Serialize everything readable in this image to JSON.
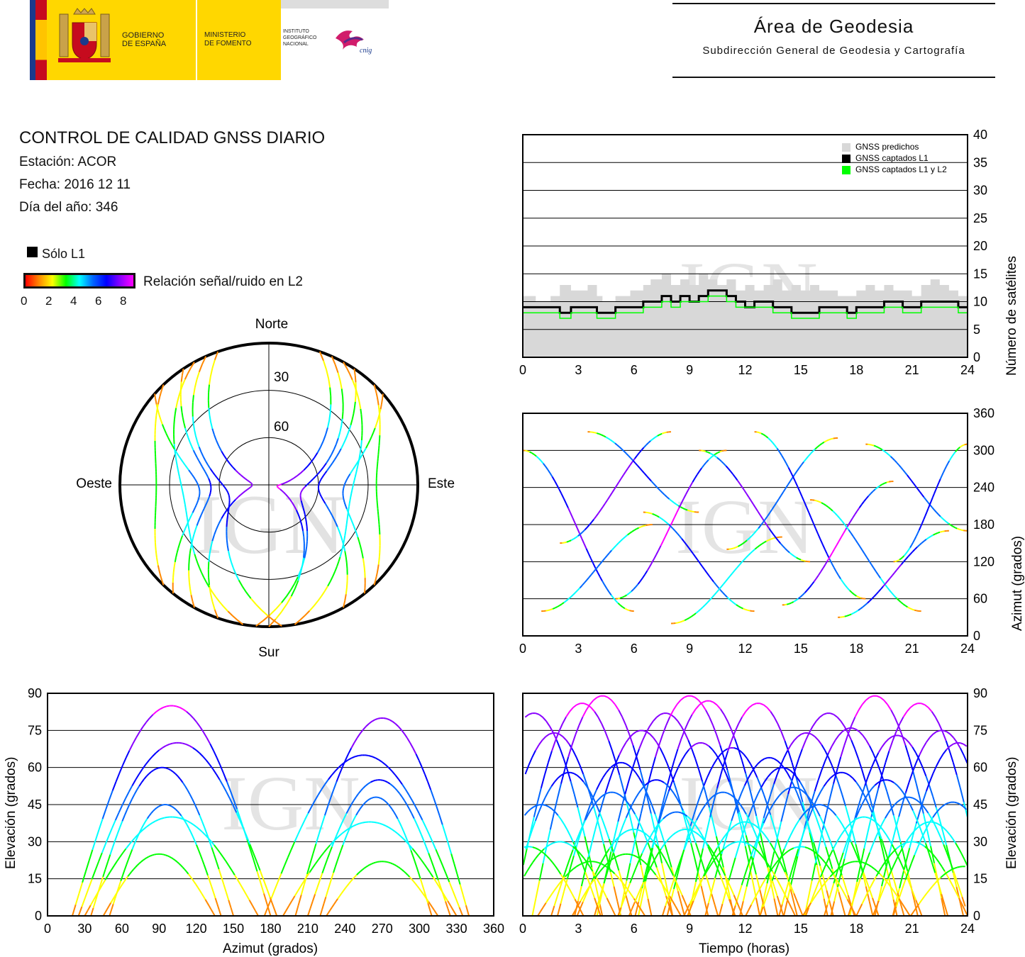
{
  "header": {
    "gov1": "GOBIERNO",
    "gov2": "DE ESPAÑA",
    "min1": "MINISTERIO",
    "min2": "DE FOMENTO",
    "ign1": "INSTITUTO",
    "ign2": "GEOGRÁFICO",
    "ign3": "NACIONAL",
    "cnig": "cnig",
    "area_title": "Área de Geodesia",
    "area_subtitle": "Subdirección General de Geodesia y Cartografía"
  },
  "report": {
    "title": "CONTROL DE CALIDAD GNSS DIARIO",
    "station": "Estación: ACOR",
    "date": "Fecha: 2016 12 11",
    "doy": "Día del año: 346"
  },
  "legend": {
    "l1_only": "Sólo L1",
    "snr_label": "Relación señal/ruido en L2",
    "snr_ticks": [
      "0",
      "2",
      "4",
      "6",
      "8"
    ],
    "snr_colors": [
      "#ff0000",
      "#ff8800",
      "#ffff00",
      "#00ff00",
      "#00ffff",
      "#0066ff",
      "#0000ff",
      "#8800ff",
      "#ff00ff"
    ]
  },
  "watermark": "IGN",
  "chart_data": [
    {
      "id": "satellites",
      "type": "area",
      "x_range": [
        0,
        24
      ],
      "x_ticks": [
        "0",
        "3",
        "6",
        "9",
        "12",
        "15",
        "18",
        "21",
        "24"
      ],
      "y_range": [
        0,
        40
      ],
      "y_ticks": [
        "0",
        "5",
        "10",
        "15",
        "20",
        "25",
        "30",
        "35",
        "40"
      ],
      "ylabel": "Número de satélites",
      "grid": true,
      "legend_position": "top-right",
      "series": [
        {
          "name": "GNSS predichos",
          "color": "#d8d8d8",
          "x": [
            0,
            0.7,
            1.5,
            2,
            2.6,
            3,
            3.5,
            4,
            4.3,
            5,
            5.8,
            6.5,
            6.9,
            7.5,
            8,
            8.5,
            9,
            9.5,
            10,
            10.5,
            11,
            11.5,
            12,
            12.5,
            13,
            13.5,
            14,
            14.5,
            15,
            15.5,
            16,
            16.5,
            17,
            17.5,
            18,
            18.5,
            19,
            19.5,
            20,
            20.5,
            21,
            21.5,
            22,
            22.5,
            23,
            23.5,
            24
          ],
          "values": [
            11,
            10,
            11,
            13,
            12,
            12,
            13,
            11,
            10,
            11,
            12,
            13,
            14,
            15,
            13,
            14,
            13,
            15,
            14,
            13,
            14,
            12,
            13,
            12,
            13,
            14,
            12,
            13,
            12,
            13,
            12,
            12,
            11,
            11,
            12,
            13,
            12,
            13,
            12,
            12,
            11,
            13,
            14,
            13,
            12,
            11,
            11
          ]
        },
        {
          "name": "GNSS captados L1",
          "color": "#000000",
          "x": [
            0,
            0.7,
            1.5,
            2,
            2.6,
            3,
            3.5,
            4,
            4.3,
            5,
            5.8,
            6.5,
            6.9,
            7.5,
            8,
            8.5,
            9,
            9.5,
            10,
            10.5,
            11,
            11.5,
            12,
            12.5,
            13,
            13.5,
            14,
            14.5,
            15,
            15.5,
            16,
            16.5,
            17,
            17.5,
            18,
            18.5,
            19,
            19.5,
            20,
            20.5,
            21,
            21.5,
            22,
            22.5,
            23,
            23.5,
            24
          ],
          "values": [
            9,
            9,
            9,
            8,
            9,
            9,
            9,
            8,
            8,
            9,
            9,
            10,
            10,
            11,
            10,
            11,
            10,
            11,
            12,
            12,
            11,
            10,
            9,
            10,
            10,
            9,
            9,
            8,
            8,
            8,
            9,
            9,
            9,
            8,
            9,
            9,
            9,
            10,
            10,
            9,
            9,
            10,
            10,
            10,
            10,
            9,
            9
          ]
        },
        {
          "name": "GNSS captados L1 y L2",
          "color": "#00ff00",
          "x": [
            0,
            0.7,
            1.5,
            2,
            2.6,
            3,
            3.5,
            4,
            4.3,
            5,
            5.8,
            6.5,
            6.9,
            7.5,
            8,
            8.5,
            9,
            9.5,
            10,
            10.5,
            11,
            11.5,
            12,
            12.5,
            13,
            13.5,
            14,
            14.5,
            15,
            15.5,
            16,
            16.5,
            17,
            17.5,
            18,
            18.5,
            19,
            19.5,
            20,
            20.5,
            21,
            21.5,
            22,
            22.5,
            23,
            23.5,
            24
          ],
          "values": [
            8,
            8,
            8,
            7,
            8,
            8,
            8,
            7,
            7,
            8,
            8,
            9,
            9,
            10,
            9,
            10,
            10,
            10,
            11,
            11,
            10,
            9,
            9,
            9,
            9,
            8,
            8,
            7,
            7,
            7,
            8,
            8,
            8,
            7,
            8,
            8,
            8,
            9,
            9,
            8,
            8,
            9,
            9,
            9,
            9,
            8,
            8
          ]
        }
      ]
    },
    {
      "id": "skyplot",
      "type": "scatter",
      "projection": "polar",
      "directions": {
        "north": "Norte",
        "south": "Sur",
        "east": "Este",
        "west": "Oeste"
      },
      "ring_labels": [
        "30",
        "60"
      ],
      "elevation_rings": [
        30,
        60
      ],
      "satellite_passes": [
        {
          "az_start": 20,
          "az_end": 180,
          "max_el": 85,
          "max_az": 100
        },
        {
          "az_start": 340,
          "az_end": 200,
          "max_el": 80,
          "max_az": 270
        },
        {
          "az_start": 35,
          "az_end": 150,
          "max_el": 60,
          "max_az": 90
        },
        {
          "az_start": 325,
          "az_end": 210,
          "max_el": 55,
          "max_az": 270
        },
        {
          "az_start": 30,
          "az_end": 170,
          "max_el": 40,
          "max_az": 100
        },
        {
          "az_start": 330,
          "az_end": 190,
          "max_el": 38,
          "max_az": 260
        },
        {
          "az_start": 45,
          "az_end": 135,
          "max_el": 25,
          "max_az": 90
        },
        {
          "az_start": 315,
          "az_end": 225,
          "max_el": 22,
          "max_az": 270
        },
        {
          "az_start": 25,
          "az_end": 185,
          "max_el": 70,
          "max_az": 105
        },
        {
          "az_start": 335,
          "az_end": 175,
          "max_el": 65,
          "max_az": 255
        },
        {
          "az_start": 50,
          "az_end": 140,
          "max_el": 45,
          "max_az": 95
        },
        {
          "az_start": 310,
          "az_end": 220,
          "max_el": 48,
          "max_az": 265
        }
      ]
    },
    {
      "id": "azimuth_time",
      "type": "scatter",
      "x_range": [
        0,
        24
      ],
      "x_ticks": [
        "0",
        "3",
        "6",
        "9",
        "12",
        "15",
        "18",
        "21",
        "24"
      ],
      "y_range": [
        0,
        360
      ],
      "y_ticks": [
        "0",
        "60",
        "120",
        "180",
        "240",
        "300",
        "360"
      ],
      "ylabel": "Azimut (grados)",
      "grid": true,
      "tracks": [
        {
          "t_start": 0,
          "t_end": 6,
          "az_start": 300,
          "az_end": 40,
          "max_el": 70
        },
        {
          "t_start": 1,
          "t_end": 7,
          "az_start": 40,
          "az_end": 180,
          "max_el": 45
        },
        {
          "t_start": 2,
          "t_end": 8,
          "az_start": 150,
          "az_end": 330,
          "max_el": 80
        },
        {
          "t_start": 3.5,
          "t_end": 9.5,
          "az_start": 330,
          "az_end": 200,
          "max_el": 55
        },
        {
          "t_start": 5,
          "t_end": 11,
          "az_start": 60,
          "az_end": 300,
          "max_el": 85
        },
        {
          "t_start": 6.5,
          "t_end": 12.5,
          "az_start": 200,
          "az_end": 40,
          "max_el": 60
        },
        {
          "t_start": 8,
          "t_end": 14,
          "az_start": 20,
          "az_end": 160,
          "max_el": 40
        },
        {
          "t_start": 9.5,
          "t_end": 15.5,
          "az_start": 300,
          "az_end": 120,
          "max_el": 75
        },
        {
          "t_start": 11,
          "t_end": 17,
          "az_start": 140,
          "az_end": 320,
          "max_el": 50
        },
        {
          "t_start": 12.5,
          "t_end": 18.5,
          "az_start": 330,
          "az_end": 60,
          "max_el": 65
        },
        {
          "t_start": 14,
          "t_end": 20,
          "az_start": 50,
          "az_end": 250,
          "max_el": 85
        },
        {
          "t_start": 15.5,
          "t_end": 21.5,
          "az_start": 220,
          "az_end": 40,
          "max_el": 45
        },
        {
          "t_start": 17,
          "t_end": 23,
          "az_start": 30,
          "az_end": 170,
          "max_el": 70
        },
        {
          "t_start": 18.5,
          "t_end": 24,
          "az_start": 310,
          "az_end": 170,
          "max_el": 55
        },
        {
          "t_start": 20,
          "t_end": 24,
          "az_start": 120,
          "az_end": 310,
          "max_el": 60
        }
      ]
    },
    {
      "id": "elevation_azimuth",
      "type": "scatter",
      "x_range": [
        0,
        360
      ],
      "x_ticks": [
        "0",
        "30",
        "60",
        "90",
        "120",
        "150",
        "180",
        "210",
        "240",
        "270",
        "300",
        "330",
        "360"
      ],
      "y_range": [
        0,
        90
      ],
      "y_ticks": [
        "0",
        "15",
        "30",
        "45",
        "60",
        "75",
        "90"
      ],
      "xlabel": "Azimut (grados)",
      "ylabel": "Elevación (grados)",
      "grid": true
    },
    {
      "id": "elevation_time",
      "type": "scatter",
      "x_range": [
        0,
        24
      ],
      "x_ticks": [
        "0",
        "3",
        "6",
        "9",
        "12",
        "15",
        "18",
        "21",
        "24"
      ],
      "y_range": [
        0,
        90
      ],
      "y_ticks": [
        "0",
        "15",
        "30",
        "45",
        "60",
        "75",
        "90"
      ],
      "xlabel": "Tiempo (horas)",
      "ylabel": "Elevación (grados)",
      "grid": true,
      "passes": [
        {
          "t_peak": 0.6,
          "max_el": 82
        },
        {
          "t_peak": 1.7,
          "max_el": 74
        },
        {
          "t_peak": 3.2,
          "max_el": 86
        },
        {
          "t_peak": 4.3,
          "max_el": 89
        },
        {
          "t_peak": 5.3,
          "max_el": 62
        },
        {
          "t_peak": 6.4,
          "max_el": 75
        },
        {
          "t_peak": 7.7,
          "max_el": 82
        },
        {
          "t_peak": 9.0,
          "max_el": 89
        },
        {
          "t_peak": 10.0,
          "max_el": 87
        },
        {
          "t_peak": 11.3,
          "max_el": 68
        },
        {
          "t_peak": 12.7,
          "max_el": 86
        },
        {
          "t_peak": 14.0,
          "max_el": 60
        },
        {
          "t_peak": 15.3,
          "max_el": 74
        },
        {
          "t_peak": 16.5,
          "max_el": 82
        },
        {
          "t_peak": 17.7,
          "max_el": 76
        },
        {
          "t_peak": 19.0,
          "max_el": 89
        },
        {
          "t_peak": 20.2,
          "max_el": 73
        },
        {
          "t_peak": 21.4,
          "max_el": 86
        },
        {
          "t_peak": 22.6,
          "max_el": 75
        },
        {
          "t_peak": 23.5,
          "max_el": 70
        },
        {
          "t_peak": 1.0,
          "max_el": 45
        },
        {
          "t_peak": 2.5,
          "max_el": 58
        },
        {
          "t_peak": 4.8,
          "max_el": 50
        },
        {
          "t_peak": 6.0,
          "max_el": 35
        },
        {
          "t_peak": 7.2,
          "max_el": 55
        },
        {
          "t_peak": 8.3,
          "max_el": 42
        },
        {
          "t_peak": 9.6,
          "max_el": 70
        },
        {
          "t_peak": 10.8,
          "max_el": 50
        },
        {
          "t_peak": 12.0,
          "max_el": 38
        },
        {
          "t_peak": 13.3,
          "max_el": 64
        },
        {
          "t_peak": 14.6,
          "max_el": 52
        },
        {
          "t_peak": 16.0,
          "max_el": 45
        },
        {
          "t_peak": 17.2,
          "max_el": 58
        },
        {
          "t_peak": 18.4,
          "max_el": 40
        },
        {
          "t_peak": 19.6,
          "max_el": 55
        },
        {
          "t_peak": 20.8,
          "max_el": 48
        },
        {
          "t_peak": 22.0,
          "max_el": 38
        },
        {
          "t_peak": 23.2,
          "max_el": 46
        },
        {
          "t_peak": 0.3,
          "max_el": 28
        },
        {
          "t_peak": 2.0,
          "max_el": 30
        },
        {
          "t_peak": 3.7,
          "max_el": 22
        },
        {
          "t_peak": 5.6,
          "max_el": 25
        },
        {
          "t_peak": 8.8,
          "max_el": 35
        },
        {
          "t_peak": 11.7,
          "max_el": 30
        },
        {
          "t_peak": 15.0,
          "max_el": 28
        },
        {
          "t_peak": 18.0,
          "max_el": 22
        },
        {
          "t_peak": 21.0,
          "max_el": 30
        },
        {
          "t_peak": 23.8,
          "max_el": 20
        }
      ]
    }
  ]
}
